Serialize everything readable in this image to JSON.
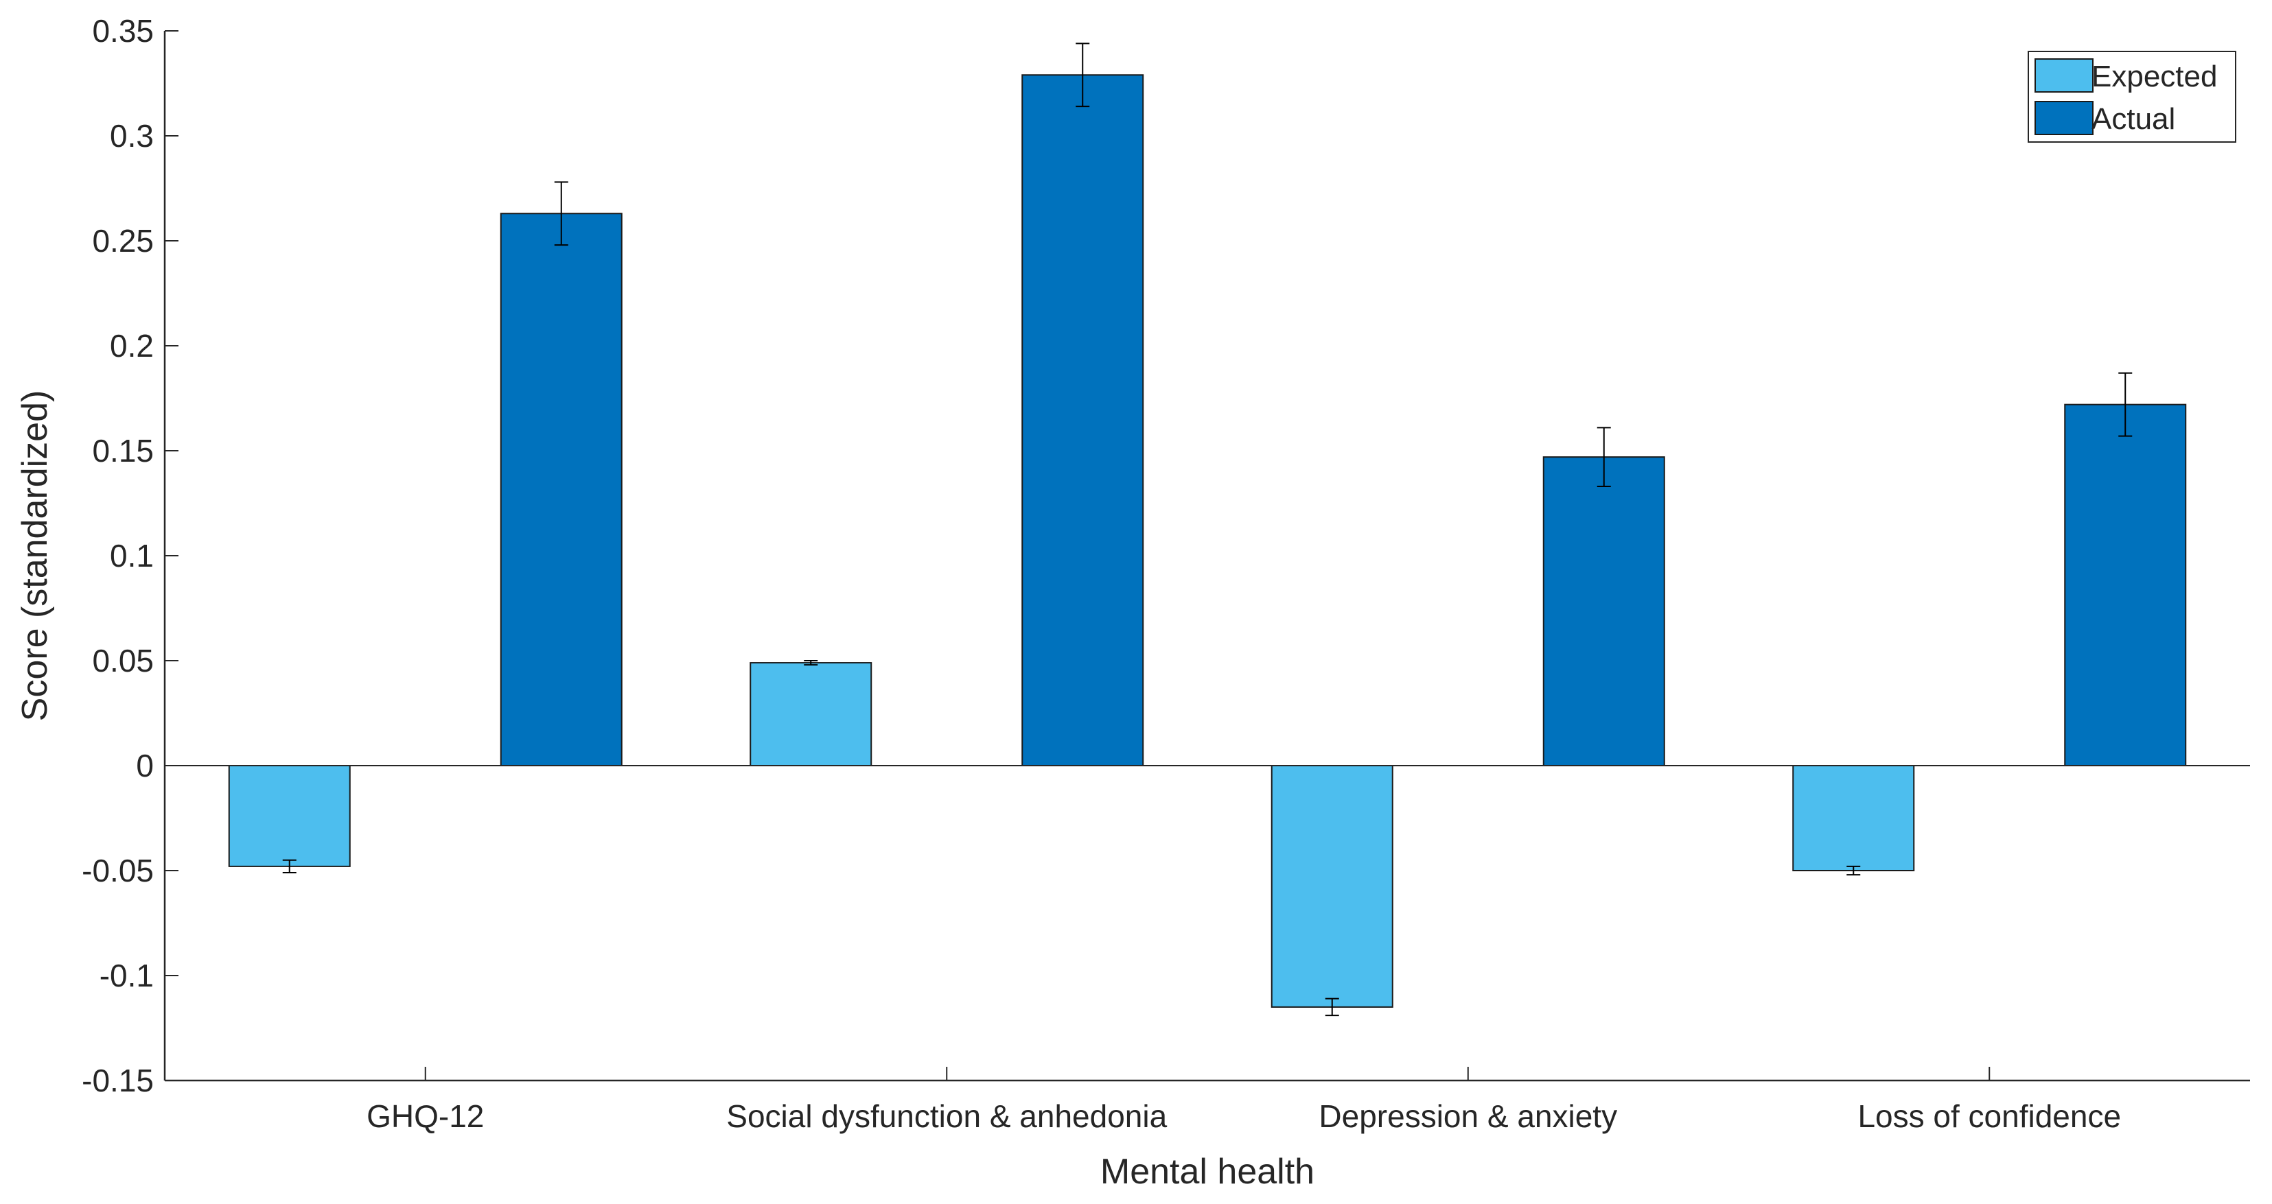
{
  "chart_data": {
    "type": "bar",
    "title": "",
    "xlabel": "Mental health",
    "ylabel": "Score (standardized)",
    "categories": [
      "GHQ-12",
      "Social dysfunction & anhedonia",
      "Depression & anxiety",
      "Loss of confidence"
    ],
    "series": [
      {
        "name": "Expected",
        "color": "#4DBEEE",
        "values": [
          -0.048,
          0.049,
          -0.115,
          -0.05
        ],
        "errors": [
          0.003,
          0.001,
          0.004,
          0.002
        ]
      },
      {
        "name": "Actual",
        "color": "#0072BD",
        "values": [
          0.263,
          0.329,
          0.147,
          0.172
        ],
        "errors": [
          0.015,
          0.015,
          0.014,
          0.015
        ]
      }
    ],
    "ylim": [
      -0.15,
      0.35
    ],
    "yticks": [
      "-0.15",
      "-0.1",
      "-0.05",
      "0",
      "0.05",
      "0.1",
      "0.15",
      "0.2",
      "0.25",
      "0.3",
      "0.35"
    ],
    "grid": false,
    "legend_position": "top-right"
  }
}
